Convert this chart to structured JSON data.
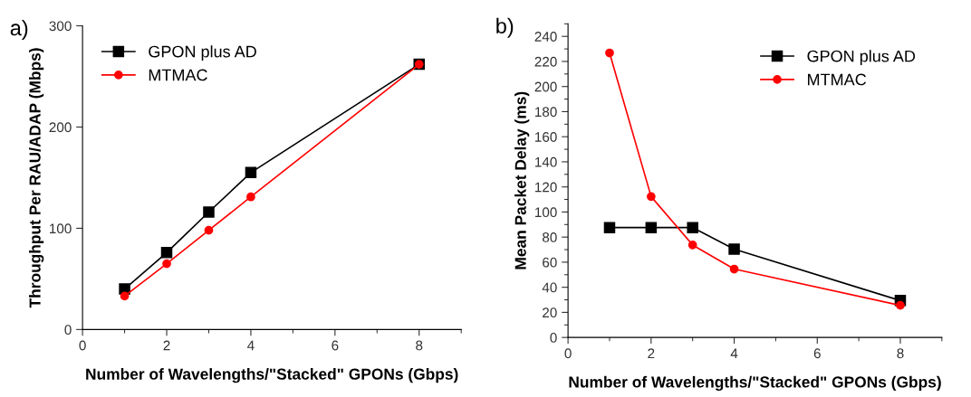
{
  "chart_data": [
    {
      "type": "line",
      "title": "a)",
      "xlabel": "Number of Wavelengths/\"Stacked\" GPONs (Gbps)",
      "ylabel": "Throughput Per RAU/ADAP (Mbps)",
      "x": [
        1,
        2,
        3,
        4,
        8
      ],
      "series": [
        {
          "name": "GPON plus AD",
          "color": "#000000",
          "marker": "square",
          "values": [
            40,
            76,
            116,
            155,
            262
          ]
        },
        {
          "name": "MTMAC",
          "color": "#ff0000",
          "marker": "circle",
          "values": [
            33,
            65,
            98,
            131,
            262
          ]
        }
      ],
      "xlim": [
        0,
        9
      ],
      "xticks": [
        0,
        {
          "value": 1,
          "label": null
        },
        2,
        {
          "value": 3,
          "label": null
        },
        4,
        {
          "value": 5,
          "label": null
        },
        6,
        {
          "value": 7,
          "label": null
        },
        8,
        {
          "value": 9,
          "label": null
        }
      ],
      "ylim": [
        0,
        300
      ],
      "yticks": [
        0,
        100,
        200,
        300
      ],
      "grid": false,
      "legend": "top left",
      "line_style": "solid"
    },
    {
      "type": "line",
      "title": "b)",
      "xlabel": "Number of Wavelengths/\"Stacked\" GPONs (Gbps)",
      "ylabel": "Mean Packet Delay (ms)",
      "x": [
        1,
        2,
        3,
        4,
        8
      ],
      "series": [
        {
          "name": "GPON plus AD",
          "color": "#000000",
          "marker": "square",
          "values": [
            87.6,
            87.6,
            87.6,
            70.4,
            29.4
          ]
        },
        {
          "name": "MTMAC",
          "color": "#ff0000",
          "marker": "circle",
          "values": [
            226.8,
            112.3,
            73.7,
            54.5,
            25.6
          ]
        }
      ],
      "xlim": [
        0,
        9
      ],
      "xticks": [
        0,
        {
          "value": 1,
          "label": null
        },
        2,
        {
          "value": 3,
          "label": null
        },
        4,
        {
          "value": 5,
          "label": null
        },
        6,
        {
          "value": 7,
          "label": null
        },
        8,
        {
          "value": 9,
          "label": null
        }
      ],
      "ylim": [
        0,
        250
      ],
      "yticks": [
        0,
        {
          "value": 10,
          "label": null
        },
        20,
        {
          "value": 30,
          "label": null
        },
        40,
        {
          "value": 50,
          "label": null
        },
        60,
        {
          "value": 70,
          "label": null
        },
        80,
        {
          "value": 90,
          "label": null
        },
        100,
        {
          "value": 110,
          "label": null
        },
        120,
        {
          "value": 130,
          "label": null
        },
        140,
        {
          "value": 150,
          "label": null
        },
        160,
        {
          "value": 170,
          "label": null
        },
        180,
        {
          "value": 190,
          "label": null
        },
        200,
        {
          "value": 210,
          "label": null
        },
        220,
        {
          "value": 230,
          "label": null
        },
        240,
        {
          "value": 250,
          "label": null
        }
      ],
      "grid": false,
      "legend": "top right",
      "line_style": "solid"
    }
  ]
}
